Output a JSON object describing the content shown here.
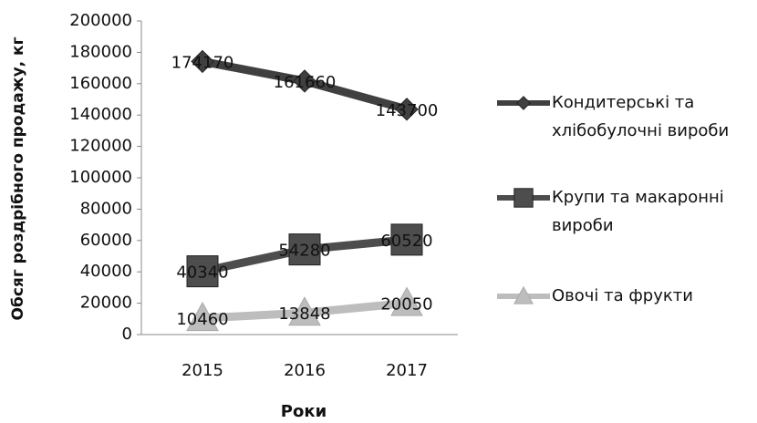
{
  "chart_data": {
    "type": "line",
    "y_label": "Обсяг роздрібного продажу, кг",
    "x_label": "Роки",
    "categories": [
      "2015",
      "2016",
      "2017"
    ],
    "series": [
      {
        "name": "Кондитерські та хлібобулочні вироби",
        "color": "#404040",
        "marker": "diamond",
        "values": [
          174170,
          161660,
          143700
        ]
      },
      {
        "name": "Крупи та макаронні вироби",
        "color": "#4d4d4d",
        "marker": "square",
        "values": [
          40340,
          54280,
          60520
        ]
      },
      {
        "name": "Овочі та фрукти",
        "color": "#bdbdbd",
        "marker": "triangle",
        "values": [
          10460,
          13848,
          20050
        ]
      }
    ],
    "ylim": [
      0,
      200000
    ],
    "yticks": [
      0,
      20000,
      40000,
      60000,
      80000,
      100000,
      120000,
      140000,
      160000,
      180000,
      200000
    ],
    "grid": false,
    "legend": "right"
  }
}
